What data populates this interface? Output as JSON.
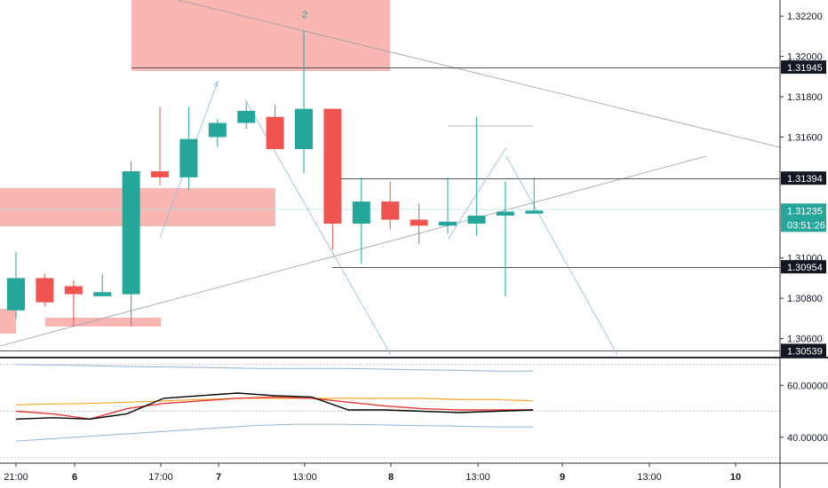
{
  "chart_data": {
    "type": "candlestick",
    "colors": {
      "up": "#26a69a",
      "down": "#ef5350",
      "zone": "#f8a9a6",
      "price_tag": "#131722",
      "current_tag": "#26a69a",
      "stoch_k": "#000000",
      "stoch_d": "#e53935",
      "sma": "#f5a623",
      "band": "#5b9bd5"
    },
    "price_axis": {
      "min": 1.3051,
      "max": 1.3228,
      "ticks": [
        "1.32200",
        "1.32000",
        "1.31800",
        "1.31600",
        "1.31000",
        "1.30800",
        "1.30600"
      ]
    },
    "price_tags": [
      {
        "label": "1.31945",
        "value": 1.31945,
        "style": "level"
      },
      {
        "label": "1.31394",
        "value": 1.31394,
        "style": "level"
      },
      {
        "label": "1.31235",
        "value": 1.31235,
        "style": "current",
        "countdown": "03:51:26"
      },
      {
        "label": "1.30954",
        "value": 1.30954,
        "style": "level"
      },
      {
        "label": "1.30539",
        "value": 1.30539,
        "style": "level"
      }
    ],
    "candles": [
      {
        "o": 1.3074,
        "h": 1.3103,
        "l": 1.307,
        "c": 1.309
      },
      {
        "o": 1.309,
        "h": 1.3092,
        "l": 1.3076,
        "c": 1.3078
      },
      {
        "o": 1.3086,
        "h": 1.3089,
        "l": 1.3066,
        "c": 1.3082
      },
      {
        "o": 1.3081,
        "h": 1.3092,
        "l": 1.3081,
        "c": 1.3083
      },
      {
        "o": 1.3082,
        "h": 1.3148,
        "l": 1.3066,
        "c": 1.3143
      },
      {
        "o": 1.3143,
        "h": 1.3175,
        "l": 1.3136,
        "c": 1.314
      },
      {
        "o": 1.314,
        "h": 1.3175,
        "l": 1.3134,
        "c": 1.3159
      },
      {
        "o": 1.316,
        "h": 1.3169,
        "l": 1.3155,
        "c": 1.3167
      },
      {
        "o": 1.3167,
        "h": 1.3177,
        "l": 1.3164,
        "c": 1.3173
      },
      {
        "o": 1.317,
        "h": 1.3176,
        "l": 1.3154,
        "c": 1.3154
      },
      {
        "o": 1.3154,
        "h": 1.3213,
        "l": 1.3142,
        "c": 1.3174
      },
      {
        "o": 1.3174,
        "h": 1.3174,
        "l": 1.3104,
        "c": 1.3117
      },
      {
        "o": 1.3117,
        "h": 1.314,
        "l": 1.3097,
        "c": 1.3128
      },
      {
        "o": 1.3128,
        "h": 1.3138,
        "l": 1.3114,
        "c": 1.3119
      },
      {
        "o": 1.3119,
        "h": 1.3127,
        "l": 1.3107,
        "c": 1.3116
      },
      {
        "o": 1.3116,
        "h": 1.314,
        "l": 1.3112,
        "c": 1.3118
      },
      {
        "o": 1.3117,
        "h": 1.317,
        "l": 1.3111,
        "c": 1.3121
      },
      {
        "o": 1.3121,
        "h": 1.3138,
        "l": 1.3081,
        "c": 1.3123
      },
      {
        "o": 1.3122,
        "h": 1.314,
        "l": 1.3122,
        "c": 1.31235
      }
    ],
    "zone_label": "2",
    "time_labels": [
      {
        "label": "21:00",
        "bold": false
      },
      {
        "label": "6",
        "bold": true
      },
      {
        "label": "17:00",
        "bold": false
      },
      {
        "label": "7",
        "bold": true
      },
      {
        "label": "13:00",
        "bold": false
      },
      {
        "label": "8",
        "bold": true
      },
      {
        "label": "13:00",
        "bold": false
      },
      {
        "label": "9",
        "bold": true
      },
      {
        "label": "13:00",
        "bold": false
      },
      {
        "label": "10",
        "bold": true
      }
    ],
    "oscillator": {
      "min": 30,
      "max": 70,
      "ticks": [
        "60.00000",
        "40.00000"
      ],
      "guides": [
        68,
        50,
        32
      ],
      "k": [
        47,
        47.5,
        47,
        49,
        55,
        56,
        57,
        56,
        55.5,
        50.5,
        50.5,
        50,
        49.5,
        50,
        50.5
      ],
      "d": [
        50,
        49,
        47,
        51,
        53,
        54,
        55,
        55.5,
        55,
        53.5,
        52,
        51,
        50.5,
        50.5,
        50.5
      ],
      "sma": [
        52.5,
        52.8,
        53,
        53.5,
        54,
        54.5,
        55,
        55,
        55,
        55,
        55,
        55,
        54.5,
        54.5,
        54
      ],
      "upper": [
        68,
        67.8,
        67.5,
        67.2,
        67,
        66.8,
        66.5,
        66.5,
        66.5,
        66.3,
        66,
        65.8,
        65.5,
        65.5
      ],
      "lower": [
        38.5,
        39.5,
        40.5,
        41.5,
        42.5,
        43.5,
        44.5,
        45,
        45,
        44.8,
        44.5,
        44.3,
        44,
        44
      ]
    }
  }
}
